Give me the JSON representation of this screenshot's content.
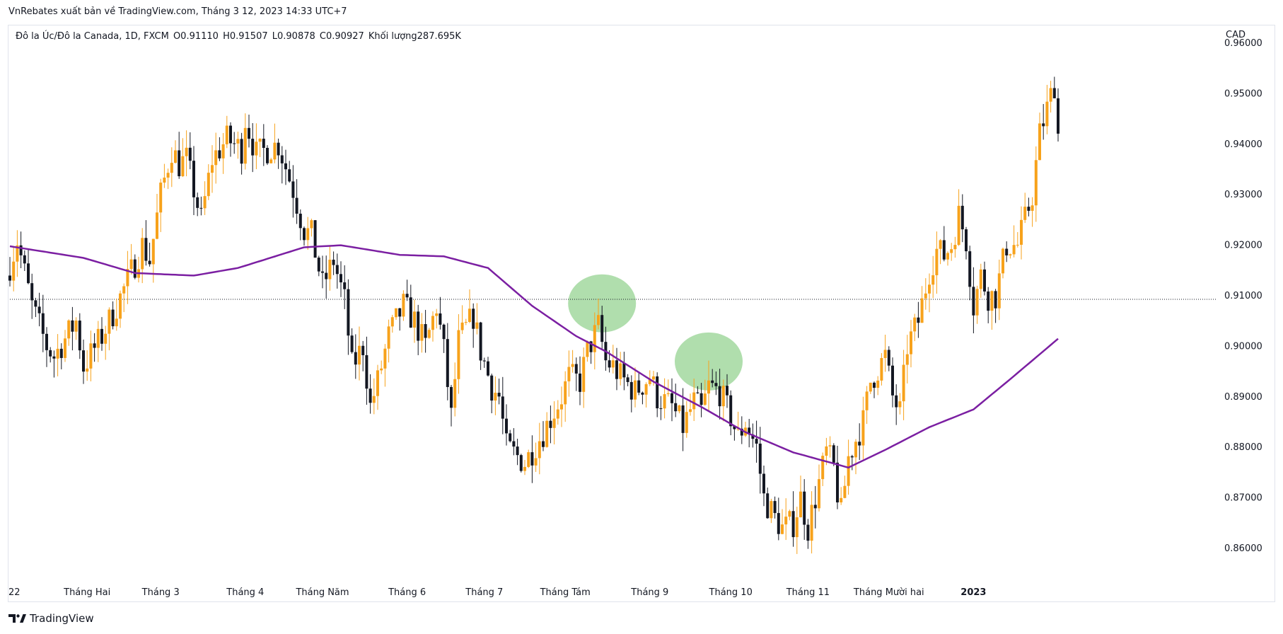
{
  "header": {
    "publisher_line": "VnRebates xuất bản về TradingView.com, Tháng 3 12, 2023 14:33 UTC+7"
  },
  "legend": {
    "symbol": "Đô la Úc/Đô la Canada, 1D, FXCM",
    "open": "O0.91110",
    "high": "H0.91507",
    "low": "L0.90878",
    "close": "C0.90927",
    "volume": "Khối lượng287.695K"
  },
  "currency": "CAD",
  "footer": {
    "brand": "TradingView"
  },
  "colors": {
    "bull": "#f7a21b",
    "bear": "#131722",
    "ma_line": "#7b1fa2",
    "highlight": "#8fd08a",
    "dotted_line": "#131722"
  },
  "chart_data": {
    "type": "candlestick",
    "title": "",
    "xlabel": "",
    "ylabel": "CAD",
    "ylim": [
      0.8495,
      0.9635
    ],
    "y_ticks": [
      "0.96000",
      "0.95000",
      "0.94000",
      "0.93000",
      "0.92000",
      "0.91000",
      "0.90000",
      "0.89000",
      "0.88000",
      "0.87000",
      "0.86000"
    ],
    "x_tick_labels": [
      {
        "label": "22",
        "bar": 0
      },
      {
        "label": "Tháng Hai",
        "bar": 21
      },
      {
        "label": "Tháng 3",
        "bar": 41
      },
      {
        "label": "Tháng 4",
        "bar": 64
      },
      {
        "label": "Tháng Năm",
        "bar": 85
      },
      {
        "label": "Tháng 6",
        "bar": 108
      },
      {
        "label": "Tháng 7",
        "bar": 129
      },
      {
        "label": "Tháng Tám",
        "bar": 151
      },
      {
        "label": "Tháng 9",
        "bar": 174
      },
      {
        "label": "Tháng 10",
        "bar": 196
      },
      {
        "label": "Tháng 11",
        "bar": 217
      },
      {
        "label": "Tháng Mười hai",
        "bar": 239
      },
      {
        "label": "2023",
        "bar": 262
      }
    ],
    "reference_level": 0.9093,
    "highlights": [
      {
        "bar": 161,
        "price": 0.9085
      },
      {
        "bar": 190,
        "price": 0.897
      }
    ],
    "ma_series": {
      "bars": [
        0,
        20,
        34,
        50,
        62,
        80,
        90,
        106,
        118,
        130,
        142,
        154,
        162,
        175,
        188,
        200,
        213,
        228,
        238,
        250,
        262,
        272,
        285
      ],
      "values": [
        0.9198,
        0.9175,
        0.9145,
        0.914,
        0.9155,
        0.9196,
        0.92,
        0.9181,
        0.9178,
        0.9155,
        0.908,
        0.902,
        0.899,
        0.893,
        0.888,
        0.883,
        0.879,
        0.876,
        0.8795,
        0.884,
        0.8875,
        0.8935,
        0.9015
      ]
    },
    "anchors": {
      "bars": [
        0,
        2,
        6,
        10,
        12,
        18,
        20,
        25,
        29,
        32,
        36,
        38,
        41,
        44,
        46,
        48,
        52,
        55,
        59,
        63,
        64,
        67,
        70,
        73,
        77,
        80,
        82,
        85,
        88,
        91,
        93,
        96,
        98,
        100,
        103,
        107,
        110,
        113,
        116,
        118,
        120,
        122,
        126,
        128,
        131,
        133,
        135,
        140,
        145,
        150,
        152,
        155,
        157,
        160,
        162,
        164,
        166,
        170,
        174,
        176,
        180,
        183,
        186,
        188,
        190,
        193,
        196,
        198,
        200,
        203,
        205,
        208,
        210,
        213,
        215,
        217,
        222,
        224,
        225,
        226,
        228,
        232,
        234,
        238,
        240,
        242,
        244,
        247,
        250,
        252,
        254,
        256,
        258,
        260,
        262,
        264,
        266,
        268,
        271,
        274,
        276,
        278,
        280,
        282,
        284,
        285
      ],
      "values": [
        0.916,
        0.921,
        0.908,
        0.9,
        0.898,
        0.905,
        0.896,
        0.902,
        0.908,
        0.913,
        0.92,
        0.917,
        0.93,
        0.939,
        0.936,
        0.937,
        0.925,
        0.937,
        0.941,
        0.939,
        0.945,
        0.938,
        0.939,
        0.94,
        0.931,
        0.923,
        0.922,
        0.912,
        0.917,
        0.909,
        0.896,
        0.9,
        0.888,
        0.893,
        0.902,
        0.908,
        0.905,
        0.9,
        0.908,
        0.899,
        0.886,
        0.901,
        0.906,
        0.899,
        0.892,
        0.89,
        0.88,
        0.877,
        0.883,
        0.89,
        0.894,
        0.893,
        0.899,
        0.904,
        0.897,
        0.896,
        0.894,
        0.891,
        0.894,
        0.89,
        0.888,
        0.884,
        0.889,
        0.887,
        0.892,
        0.891,
        0.886,
        0.882,
        0.885,
        0.88,
        0.87,
        0.866,
        0.864,
        0.865,
        0.87,
        0.864,
        0.879,
        0.876,
        0.871,
        0.867,
        0.878,
        0.885,
        0.893,
        0.898,
        0.89,
        0.887,
        0.9,
        0.905,
        0.915,
        0.919,
        0.918,
        0.92,
        0.926,
        0.921,
        0.908,
        0.914,
        0.91,
        0.91,
        0.92,
        0.92,
        0.925,
        0.93,
        0.942,
        0.947,
        0.952,
        0.942
      ]
    }
  }
}
